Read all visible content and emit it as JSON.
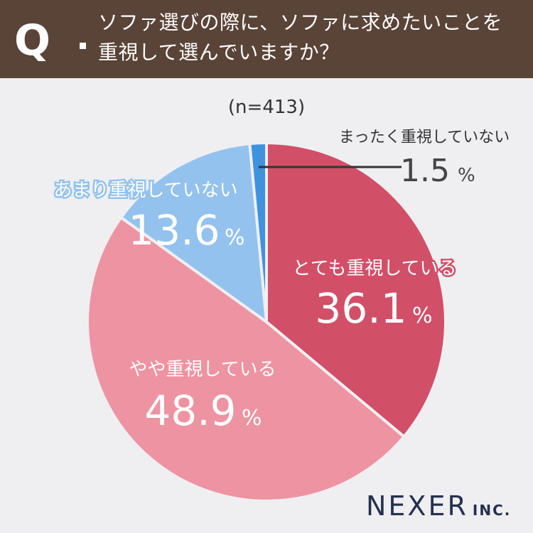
{
  "header": {
    "q_mark": "Q",
    "line1": "ソファ選びの際に、ソファに求めたいことを",
    "line2": "重視して選んでいますか？"
  },
  "sample": "(n=413)",
  "brand": {
    "name": "NEXER",
    "suffix": "INC."
  },
  "colors": {
    "header_bg": "#5a4337",
    "background": "#efeff2",
    "very": "#d24f68",
    "somewhat": "#ee93a1",
    "not_much": "#93c2ee",
    "not_at_all": "#3f92df",
    "logo": "#26314f"
  },
  "chart_data": {
    "type": "pie",
    "title": "ソファ選びの際に、ソファに求めたいことを重視して選んでいますか？",
    "start": "12 o'clock, clockwise",
    "slices": [
      {
        "label": "とても重視している",
        "value": 36.1,
        "display": "36.1",
        "unit": "%",
        "color": "#d24f68"
      },
      {
        "label": "やや重視している",
        "value": 48.9,
        "display": "48.9",
        "unit": "%",
        "color": "#ee93a1"
      },
      {
        "label": "あまり重視していない",
        "value": 13.6,
        "display": "13.6",
        "unit": "%",
        "color": "#93c2ee"
      },
      {
        "label": "まったく重視していない",
        "value": 1.5,
        "display": "1.5",
        "unit": "%",
        "color": "#3f92df"
      }
    ]
  }
}
